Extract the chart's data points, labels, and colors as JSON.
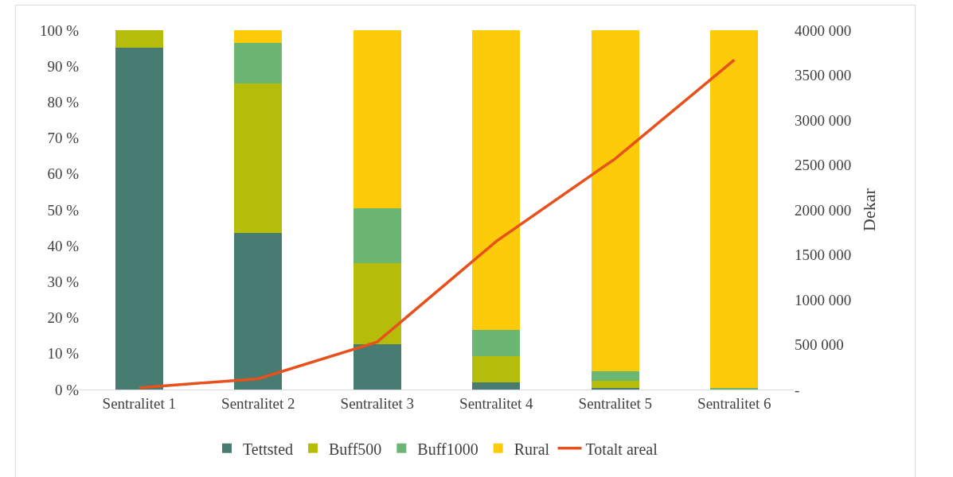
{
  "chart_data": {
    "type": "bar",
    "stacked": true,
    "categories": [
      "Sentralitet 1",
      "Sentralitet 2",
      "Sentralitet 3",
      "Sentralitet 4",
      "Sentralitet 5",
      "Sentralitet 6"
    ],
    "series": [
      {
        "name": "Tettsted",
        "color": "#467c72",
        "values": [
          95.1,
          43.6,
          12.7,
          2.0,
          0.5,
          null
        ]
      },
      {
        "name": "Buff500",
        "color": "#b5bd0a",
        "values": [
          4.9,
          41.5,
          22.4,
          7.3,
          1.9,
          0.2
        ]
      },
      {
        "name": "Buff1000",
        "color": "#6ab672",
        "values": [
          null,
          11.3,
          15.3,
          7.4,
          2.7,
          0.2
        ]
      },
      {
        "name": "Rural",
        "color": "#fecb0a",
        "values": [
          null,
          3.6,
          49.6,
          83.3,
          94.9,
          99.6
        ]
      },
      {
        "name": "Totalt areal",
        "type": "line",
        "axis": "y2",
        "color": "#e8501c",
        "marker": "none",
        "line_style": "solid",
        "values": [
          20000,
          120000,
          530000,
          1650000,
          2570000,
          3670000
        ]
      }
    ],
    "ylim": [
      0,
      100
    ],
    "yticks": [
      {
        "value": 0,
        "label": "0 %"
      },
      {
        "value": 10,
        "label": "10 %"
      },
      {
        "value": 20,
        "label": "20 %"
      },
      {
        "value": 30,
        "label": "30 %"
      },
      {
        "value": 40,
        "label": "40 %"
      },
      {
        "value": 50,
        "label": "50 %"
      },
      {
        "value": 60,
        "label": "60 %"
      },
      {
        "value": 70,
        "label": "70 %"
      },
      {
        "value": 80,
        "label": "80 %"
      },
      {
        "value": 90,
        "label": "90 %"
      },
      {
        "value": 100,
        "label": "100 %"
      }
    ],
    "y2label": "Dekar",
    "y2lim": [
      0,
      4000000
    ],
    "y2ticks": [
      {
        "value": 0,
        "label": "-"
      },
      {
        "value": 500000,
        "label": "500 000"
      },
      {
        "value": 1000000,
        "label": "1000 000"
      },
      {
        "value": 1500000,
        "label": "1500 000"
      },
      {
        "value": 2000000,
        "label": "2000 000"
      },
      {
        "value": 2500000,
        "label": "2500 000"
      },
      {
        "value": 3000000,
        "label": "3000 000"
      },
      {
        "value": 3500000,
        "label": "3500 000"
      },
      {
        "value": 4000000,
        "label": "4000 000"
      }
    ],
    "legend": "bottom"
  }
}
